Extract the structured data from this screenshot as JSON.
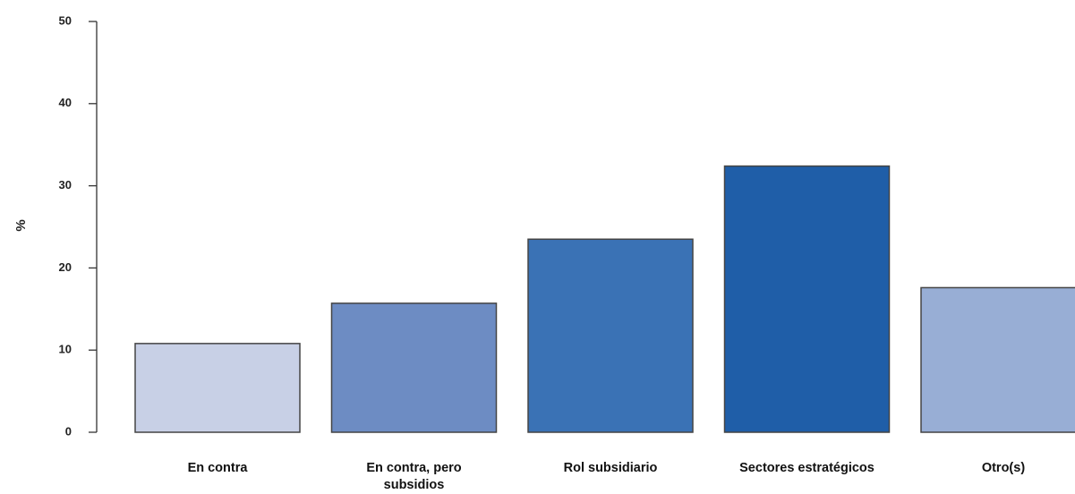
{
  "chart_data": {
    "type": "bar",
    "title": "",
    "xlabel": "",
    "ylabel": "%",
    "ylim": [
      0,
      50
    ],
    "yticks": [
      0,
      10,
      20,
      30,
      40,
      50
    ],
    "grid": false,
    "categories": [
      [
        "En contra"
      ],
      [
        "En contra, pero",
        "subsidios"
      ],
      [
        "Rol subsidiario"
      ],
      [
        "Sectores estratégicos"
      ],
      [
        "Otro(s)"
      ]
    ],
    "values": [
      10.8,
      15.7,
      23.5,
      32.4,
      17.6
    ],
    "colors": [
      "#c8d0e6",
      "#6d8cc3",
      "#3a72b5",
      "#1f5ea8",
      "#98aed5"
    ]
  }
}
